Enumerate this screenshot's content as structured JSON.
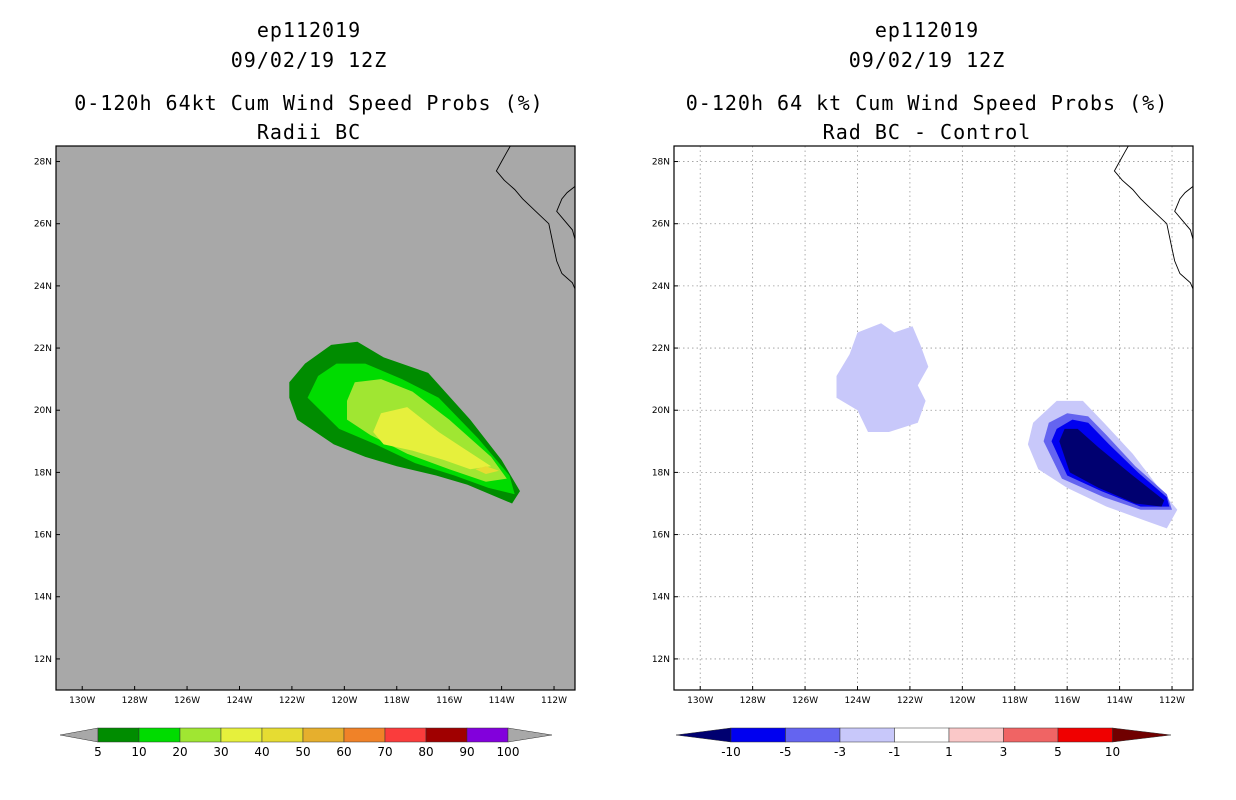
{
  "panels": [
    {
      "title_lines": [
        "ep112019",
        "09/02/19 12Z",
        "0-120h 64kt Cum Wind Speed Probs (%)",
        "Radii BC"
      ],
      "map_background": "#a8a8a8",
      "grid": false
    },
    {
      "title_lines": [
        "ep112019",
        "09/02/19 12Z",
        "0-120h 64 kt Cum Wind Speed Probs (%)",
        "Rad BC - Control"
      ],
      "map_background": "#ffffff",
      "grid": true
    }
  ],
  "chart_data": [
    {
      "type": "contour-map",
      "title": "0-120h 64kt Cum Wind Speed Probs (%)",
      "subtitle": "Radii BC",
      "storm": "ep112019",
      "date": "09/02/19 12Z",
      "lon_range": [
        -131,
        -111.2
      ],
      "lat_range": [
        11,
        28.5
      ],
      "x_ticks": [
        -130,
        -128,
        -126,
        -124,
        -122,
        -120,
        -118,
        -116,
        -114,
        -112
      ],
      "x_tick_labels": [
        "130W",
        "128W",
        "126W",
        "124W",
        "122W",
        "120W",
        "118W",
        "116W",
        "114W",
        "112W"
      ],
      "y_ticks": [
        12,
        14,
        16,
        18,
        20,
        22,
        24,
        26,
        28
      ],
      "y_tick_labels": [
        "12N",
        "14N",
        "16N",
        "18N",
        "20N",
        "22N",
        "24N",
        "26N",
        "28N"
      ],
      "legend": {
        "labels": [
          "5",
          "10",
          "20",
          "30",
          "40",
          "50",
          "60",
          "70",
          "80",
          "90",
          "100"
        ],
        "colors": [
          "#a8a8a8",
          "#008c00",
          "#00dc00",
          "#a0e632",
          "#e6f03c",
          "#e6dc32",
          "#e6af2d",
          "#f08228",
          "#fa3c3c",
          "#a00000",
          "#8200dc",
          "#a8a8a8"
        ]
      },
      "contours": [
        {
          "level": "5-10",
          "color": "#008c00",
          "lonlat": [
            [
              -122.1,
              20.9
            ],
            [
              -121.5,
              21.5
            ],
            [
              -120.5,
              22.1
            ],
            [
              -119.5,
              22.2
            ],
            [
              -118.5,
              21.7
            ],
            [
              -116.8,
              21.2
            ],
            [
              -115.2,
              19.7
            ],
            [
              -114,
              18.4
            ],
            [
              -113.3,
              17.4
            ],
            [
              -113.6,
              17.0
            ],
            [
              -115.3,
              17.6
            ],
            [
              -116.5,
              17.9
            ],
            [
              -118,
              18.2
            ],
            [
              -119.2,
              18.5
            ],
            [
              -120.4,
              18.9
            ],
            [
              -121.8,
              19.7
            ],
            [
              -122.1,
              20.4
            ]
          ]
        },
        {
          "level": "10-20",
          "color": "#00dc00",
          "lonlat": [
            [
              -121.4,
              20.4
            ],
            [
              -121.0,
              21.1
            ],
            [
              -120.3,
              21.5
            ],
            [
              -119.2,
              21.5
            ],
            [
              -117.8,
              21.0
            ],
            [
              -116.4,
              20.4
            ],
            [
              -114.9,
              19.1
            ],
            [
              -113.7,
              17.9
            ],
            [
              -113.5,
              17.3
            ],
            [
              -114.5,
              17.5
            ],
            [
              -115.8,
              17.9
            ],
            [
              -117.3,
              18.3
            ],
            [
              -118.8,
              18.9
            ],
            [
              -120.2,
              19.4
            ]
          ]
        },
        {
          "level": "20-30",
          "color": "#a0e632",
          "lonlat": [
            [
              -119.9,
              20.3
            ],
            [
              -119.6,
              20.9
            ],
            [
              -118.6,
              21.0
            ],
            [
              -117.4,
              20.6
            ],
            [
              -116.0,
              19.7
            ],
            [
              -114.4,
              18.5
            ],
            [
              -113.8,
              17.8
            ],
            [
              -114.6,
              17.7
            ],
            [
              -116.0,
              18.1
            ],
            [
              -117.6,
              18.6
            ],
            [
              -119.0,
              19.2
            ],
            [
              -119.9,
              19.7
            ]
          ]
        },
        {
          "level": "30-40",
          "color": "#e6f03c",
          "lonlat": [
            [
              -118.9,
              19.3
            ],
            [
              -118.6,
              19.9
            ],
            [
              -117.6,
              20.1
            ],
            [
              -116.4,
              19.3
            ],
            [
              -115.5,
              18.8
            ],
            [
              -114.4,
              18.2
            ],
            [
              -115.2,
              18.1
            ],
            [
              -116.2,
              18.4
            ],
            [
              -117.4,
              18.7
            ],
            [
              -118.5,
              18.9
            ]
          ]
        },
        {
          "level": "40-50",
          "color": "#e6dc32",
          "lonlat": [
            [
              -114.6,
              18.2
            ],
            [
              -114.1,
              18.05
            ],
            [
              -114.6,
              17.95
            ],
            [
              -115.0,
              18.1
            ]
          ]
        }
      ]
    },
    {
      "type": "contour-map",
      "title": "0-120h 64 kt Cum Wind Speed Probs (%)",
      "subtitle": "Rad BC - Control",
      "storm": "ep112019",
      "date": "09/02/19 12Z",
      "lon_range": [
        -131,
        -111.2
      ],
      "lat_range": [
        11,
        28.5
      ],
      "x_ticks": [
        -130,
        -128,
        -126,
        -124,
        -122,
        -120,
        -118,
        -116,
        -114,
        -112
      ],
      "x_tick_labels": [
        "130W",
        "128W",
        "126W",
        "124W",
        "122W",
        "120W",
        "118W",
        "116W",
        "114W",
        "112W"
      ],
      "y_ticks": [
        12,
        14,
        16,
        18,
        20,
        22,
        24,
        26,
        28
      ],
      "y_tick_labels": [
        "12N",
        "14N",
        "16N",
        "18N",
        "20N",
        "22N",
        "24N",
        "26N",
        "28N"
      ],
      "legend": {
        "labels": [
          "-10",
          "-5",
          "-3",
          "-1",
          "1",
          "3",
          "5",
          "10"
        ],
        "colors": [
          "#000070",
          "#0000f0",
          "#6464f0",
          "#c8c8fa",
          "#ffffff",
          "#fac8c8",
          "#f06464",
          "#f00000",
          "#700000"
        ]
      },
      "contours": [
        {
          "level": "-3 to -1",
          "color": "#c8c8fa",
          "lonlat": [
            [
              -124.3,
              21.8
            ],
            [
              -124.0,
              22.5
            ],
            [
              -123.1,
              22.8
            ],
            [
              -122.6,
              22.5
            ],
            [
              -121.9,
              22.7
            ],
            [
              -121.6,
              22.1
            ],
            [
              -121.3,
              21.4
            ],
            [
              -121.7,
              20.8
            ],
            [
              -121.4,
              20.3
            ],
            [
              -121.7,
              19.6
            ],
            [
              -122.8,
              19.3
            ],
            [
              -123.6,
              19.3
            ],
            [
              -124.0,
              20.0
            ],
            [
              -124.8,
              20.4
            ],
            [
              -124.8,
              21.1
            ]
          ]
        },
        {
          "level": "-3 to -1",
          "color": "#c8c8fa",
          "lonlat": [
            [
              -117.5,
              18.9
            ],
            [
              -117.3,
              19.6
            ],
            [
              -116.4,
              20.3
            ],
            [
              -115.4,
              20.3
            ],
            [
              -114.6,
              19.6
            ],
            [
              -113.5,
              18.6
            ],
            [
              -112.5,
              17.5
            ],
            [
              -111.8,
              16.8
            ],
            [
              -112.2,
              16.2
            ],
            [
              -113.2,
              16.5
            ],
            [
              -114.5,
              16.9
            ],
            [
              -116.0,
              17.5
            ],
            [
              -117.1,
              18.1
            ]
          ]
        },
        {
          "level": "-5 to -3",
          "color": "#6464f0",
          "lonlat": [
            [
              -116.9,
              19.0
            ],
            [
              -116.7,
              19.6
            ],
            [
              -116.0,
              19.9
            ],
            [
              -115.2,
              19.8
            ],
            [
              -114.5,
              19.2
            ],
            [
              -113.4,
              18.2
            ],
            [
              -112.2,
              17.3
            ],
            [
              -112.0,
              16.8
            ],
            [
              -113.2,
              16.8
            ],
            [
              -114.6,
              17.2
            ],
            [
              -116.2,
              17.8
            ]
          ]
        },
        {
          "level": "-10 to -5",
          "color": "#0000f0",
          "lonlat": [
            [
              -116.6,
              19.0
            ],
            [
              -116.4,
              19.4
            ],
            [
              -115.8,
              19.7
            ],
            [
              -115.2,
              19.6
            ],
            [
              -114.4,
              18.9
            ],
            [
              -113.3,
              18.0
            ],
            [
              -112.2,
              17.2
            ],
            [
              -112.1,
              16.9
            ],
            [
              -113.2,
              16.9
            ],
            [
              -114.7,
              17.4
            ],
            [
              -116.0,
              17.9
            ]
          ]
        },
        {
          "level": "< -10",
          "color": "#000070",
          "lonlat": [
            [
              -116.3,
              19.0
            ],
            [
              -116.1,
              19.4
            ],
            [
              -115.6,
              19.4
            ],
            [
              -114.8,
              18.8
            ],
            [
              -113.5,
              17.9
            ],
            [
              -112.3,
              17.1
            ],
            [
              -112.4,
              16.9
            ],
            [
              -113.4,
              17.0
            ],
            [
              -114.8,
              17.5
            ],
            [
              -115.9,
              18.0
            ]
          ]
        }
      ]
    }
  ]
}
